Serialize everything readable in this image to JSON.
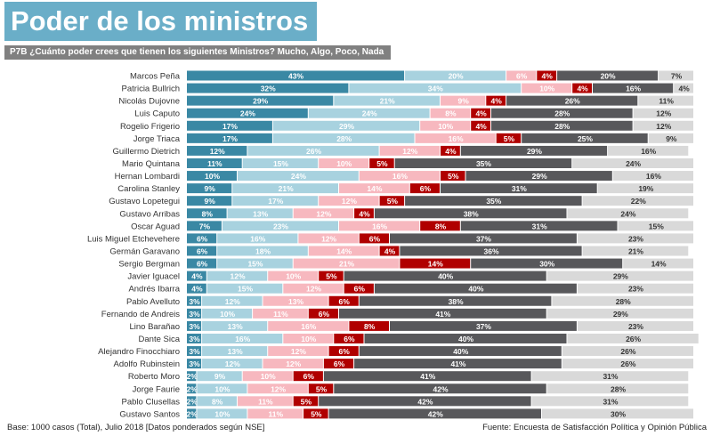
{
  "title": "Poder de los ministros",
  "subtitle": "P7B ¿Cuánto poder crees que tienen los siguientes Ministros? Mucho, Algo, Poco, Nada",
  "footer_left": "Base: 1000 casos (Total), Julio  2018 [Datos ponderados según NSE]",
  "footer_right": "Fuente: Encuesta de Satisfacción Política y Opinión Pública",
  "chart_data": {
    "type": "bar",
    "orientation": "horizontal",
    "stacked": true,
    "unit": "%",
    "xlim": [
      0,
      100
    ],
    "grid": false,
    "legend": "none",
    "colors": [
      "#3a88a4",
      "#a8d2df",
      "#f7b8bf",
      "#b00000",
      "#58585b",
      "#d9d9d9"
    ],
    "label_colors": [
      "#ffffff",
      "#ffffff",
      "#ffffff",
      "#ffffff",
      "#ffffff",
      "#333333"
    ],
    "categories": [
      "Marcos Peña",
      "Patricia Bullrich",
      "Nicolás Dujovne",
      "Luis Caputo",
      "Rogelio Frigerio",
      "Jorge Triaca",
      "Guillermo Dietrich",
      "Mario Quintana",
      "Hernan Lombardi",
      "Carolina Stanley",
      "Gustavo Lopetegui",
      "Gustavo Arribas",
      "Oscar Aguad",
      "Luis Miguel Etchevehere",
      "Germán Garavano",
      "Sergio Bergman",
      "Javier Iguacel",
      "Andrés Ibarra",
      "Pablo Avelluto",
      "Fernando de Andreis",
      "Lino Barañao",
      "Dante Sica",
      "Alejandro Finocchiaro",
      "Adolfo Rubinstein",
      "Roberto Moro",
      "Jorge Faurie",
      "Pablo Clusellas",
      "Gustavo Santos"
    ],
    "series": [
      {
        "name": "Mucho",
        "values": [
          43,
          32,
          29,
          24,
          17,
          17,
          12,
          11,
          10,
          9,
          9,
          8,
          7,
          6,
          6,
          6,
          4,
          4,
          3,
          3,
          3,
          3,
          3,
          3,
          2,
          2,
          2,
          2
        ]
      },
      {
        "name": "Algo",
        "values": [
          20,
          34,
          21,
          24,
          29,
          28,
          26,
          15,
          24,
          21,
          17,
          13,
          23,
          16,
          18,
          15,
          12,
          15,
          12,
          10,
          13,
          16,
          13,
          12,
          9,
          10,
          8,
          10
        ]
      },
      {
        "name": "Poco",
        "values": [
          6,
          10,
          9,
          8,
          10,
          16,
          12,
          10,
          16,
          14,
          12,
          12,
          16,
          12,
          14,
          21,
          10,
          12,
          13,
          11,
          16,
          10,
          12,
          12,
          10,
          12,
          11,
          11
        ]
      },
      {
        "name": "Nada",
        "values": [
          4,
          4,
          4,
          4,
          4,
          5,
          4,
          5,
          5,
          6,
          5,
          4,
          8,
          6,
          4,
          14,
          5,
          6,
          6,
          6,
          8,
          6,
          6,
          6,
          6,
          5,
          5,
          5
        ]
      },
      {
        "values": [
          20,
          16,
          26,
          28,
          28,
          25,
          29,
          35,
          29,
          31,
          35,
          38,
          31,
          37,
          36,
          30,
          40,
          40,
          38,
          41,
          37,
          40,
          40,
          41,
          41,
          42,
          42,
          42
        ]
      },
      {
        "values": [
          7,
          4,
          11,
          12,
          12,
          9,
          16,
          24,
          16,
          19,
          22,
          24,
          15,
          23,
          21,
          14,
          29,
          23,
          28,
          29,
          23,
          26,
          26,
          26,
          31,
          28,
          31,
          30
        ]
      }
    ]
  }
}
